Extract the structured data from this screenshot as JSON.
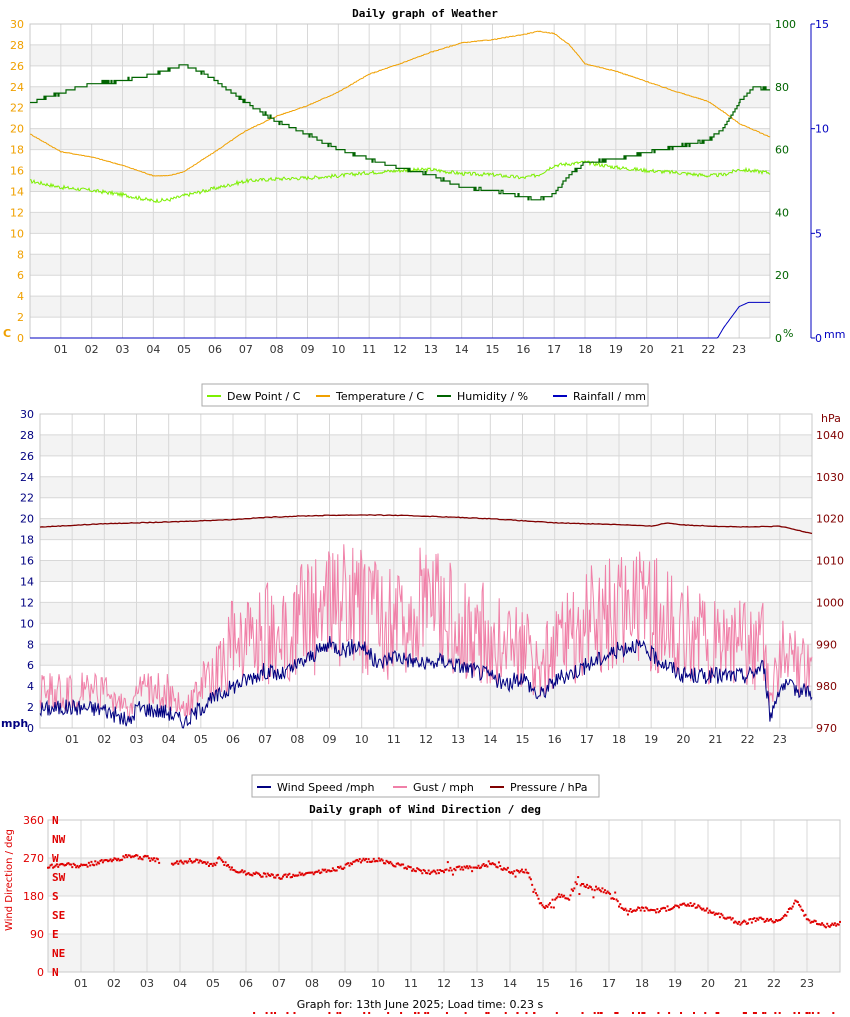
{
  "footer_text": "Graph for: 13th June 2025; Load time: 0.23 s",
  "chart_data": [
    {
      "type": "line",
      "title": "Daily graph of Weather",
      "x_ticks": [
        "01",
        "02",
        "03",
        "04",
        "05",
        "06",
        "07",
        "08",
        "09",
        "10",
        "11",
        "12",
        "13",
        "14",
        "15",
        "16",
        "17",
        "18",
        "19",
        "20",
        "21",
        "22",
        "23"
      ],
      "xlim": [
        0,
        24
      ],
      "grid": true,
      "legend_position": "bottom",
      "axes": {
        "temp": {
          "ylim": [
            0,
            30
          ],
          "ticks": [
            0,
            2,
            4,
            6,
            8,
            10,
            12,
            14,
            16,
            18,
            20,
            22,
            24,
            26,
            28,
            30
          ],
          "unit": "C",
          "color": "#f0a000"
        },
        "humidity": {
          "ylim": [
            0,
            100
          ],
          "ticks": [
            0,
            20,
            40,
            60,
            80,
            100
          ],
          "unit": "%",
          "color": "#006400"
        },
        "rain": {
          "ylim": [
            0,
            15
          ],
          "ticks": [
            0,
            5,
            10,
            15
          ],
          "unit": "mm",
          "color": "#0000c0"
        }
      },
      "series": [
        {
          "name": "Dew Point / C",
          "axis": "temp",
          "color": "#7cf000",
          "x": [
            0,
            1,
            2,
            3,
            4,
            4.5,
            5,
            6,
            7,
            8,
            9,
            10,
            11,
            12,
            13,
            14,
            15,
            16,
            16.5,
            17,
            18,
            19,
            20,
            21,
            22,
            22.5,
            23,
            24
          ],
          "y": [
            15,
            14.4,
            14.1,
            13.7,
            13.1,
            13.2,
            13.6,
            14.3,
            15,
            15.2,
            15.3,
            15.5,
            15.8,
            16,
            16.1,
            15.7,
            15.6,
            15.3,
            15.6,
            16.5,
            16.8,
            16.3,
            16,
            15.8,
            15.5,
            15.6,
            16.1,
            15.8
          ]
        },
        {
          "name": "Temperature / C",
          "axis": "temp",
          "color": "#f0a000",
          "x": [
            0,
            1,
            2,
            3,
            4,
            4.5,
            5,
            6,
            7,
            8,
            9,
            10,
            11,
            12,
            13,
            14,
            15,
            16,
            16.5,
            17,
            17.5,
            18,
            19,
            20,
            21,
            22,
            22.5,
            23,
            24
          ],
          "y": [
            19.5,
            17.8,
            17.3,
            16.5,
            15.5,
            15.5,
            15.9,
            17.8,
            19.8,
            21.2,
            22.2,
            23.5,
            25.2,
            26.2,
            27.3,
            28.2,
            28.5,
            29,
            29.3,
            29.1,
            28,
            26.2,
            25.5,
            24.5,
            23.5,
            22.6,
            21.6,
            20.5,
            19.2
          ]
        },
        {
          "name": "Humidity / %",
          "axis": "humidity",
          "color": "#006400",
          "x": [
            0,
            1,
            2,
            3,
            4,
            5,
            5.5,
            6,
            7,
            8,
            9,
            10,
            11,
            12,
            13,
            14,
            15,
            16,
            16.5,
            17,
            17.5,
            18,
            19,
            20,
            21,
            22,
            22.5,
            23,
            23.5,
            24
          ],
          "y": [
            75,
            78,
            81,
            82,
            84,
            87,
            85,
            82,
            75,
            69,
            65,
            60,
            57,
            54,
            52,
            48,
            47,
            45,
            44,
            46,
            52,
            56,
            57,
            59,
            61,
            63,
            67,
            75,
            80,
            79
          ]
        },
        {
          "name": "Rainfall / mm",
          "axis": "rain",
          "color": "#0000c0",
          "x": [
            0,
            22.3,
            22.5,
            23,
            23.3,
            24
          ],
          "y": [
            0,
            0,
            0.5,
            1.5,
            1.7,
            1.7
          ]
        }
      ]
    },
    {
      "type": "line",
      "title": "",
      "x_ticks": [
        "01",
        "02",
        "03",
        "04",
        "05",
        "06",
        "07",
        "08",
        "09",
        "10",
        "11",
        "12",
        "13",
        "14",
        "15",
        "16",
        "17",
        "18",
        "19",
        "20",
        "21",
        "22",
        "23"
      ],
      "xlim": [
        0,
        24
      ],
      "grid": true,
      "legend_position": "bottom",
      "axes": {
        "wind": {
          "ylim": [
            0,
            30
          ],
          "ticks": [
            0,
            2,
            4,
            6,
            8,
            10,
            12,
            14,
            16,
            18,
            20,
            22,
            24,
            26,
            28,
            30
          ],
          "unit": "mph",
          "color": "#000080"
        },
        "pressure": {
          "ylim": [
            970,
            1045
          ],
          "ticks": [
            970,
            980,
            990,
            1000,
            1010,
            1020,
            1030,
            1040
          ],
          "unit": "hPa",
          "color": "#800000"
        }
      },
      "series": [
        {
          "name": "Wind Speed /mph",
          "axis": "wind",
          "color": "#000080",
          "x": [
            0,
            1,
            2,
            2.8,
            3,
            4,
            4.5,
            5,
            6,
            7,
            7.5,
            8,
            9,
            9.5,
            10,
            10.5,
            11,
            12,
            12.5,
            13,
            14,
            14.5,
            15,
            15.5,
            16,
            17,
            18,
            18.5,
            19,
            20,
            21,
            22,
            22.5,
            22.7,
            23,
            24
          ],
          "y": [
            1.8,
            2,
            1.8,
            0.5,
            2,
            1.5,
            0.5,
            2,
            4,
            5.5,
            5,
            6,
            8,
            7.5,
            8,
            6,
            7,
            6,
            6.5,
            6,
            5,
            4,
            5,
            3,
            4.5,
            6,
            7.5,
            8,
            7,
            5,
            5,
            5,
            6,
            1,
            4,
            3.5
          ]
        },
        {
          "name": "Gust / mph",
          "axis": "wind",
          "color": "#f080a8",
          "x": [
            0,
            1,
            2,
            2.8,
            3,
            4,
            4.5,
            5,
            6,
            7,
            8,
            9,
            9.5,
            10,
            11,
            12,
            12.5,
            13,
            14,
            14.5,
            15,
            15.5,
            16,
            17,
            18,
            18.5,
            19,
            20,
            21,
            22,
            22.5,
            22.7,
            23,
            24
          ],
          "y": [
            3.5,
            3.5,
            3.5,
            1.5,
            3.5,
            3.5,
            1.5,
            4,
            8,
            9,
            10,
            11,
            12,
            11,
            10,
            12,
            11,
            10,
            9,
            8,
            8,
            5,
            8,
            10,
            12,
            11,
            11,
            9,
            8,
            8,
            8,
            2,
            7,
            5
          ]
        },
        {
          "name": "Pressure / hPa",
          "axis": "pressure",
          "color": "#800000",
          "x": [
            0,
            2,
            4,
            6,
            7,
            8,
            9,
            10,
            11,
            12,
            13,
            14,
            15,
            16,
            17,
            18,
            19,
            19.5,
            20,
            21,
            22,
            23,
            24
          ],
          "y": [
            1018,
            1018.8,
            1019.2,
            1019.8,
            1020.3,
            1020.6,
            1020.8,
            1020.9,
            1020.8,
            1020.6,
            1020.3,
            1020,
            1019.5,
            1019,
            1018.8,
            1018.6,
            1018.2,
            1019,
            1018.5,
            1018.2,
            1018,
            1018.2,
            1016.5
          ]
        }
      ]
    },
    {
      "type": "scatter",
      "title": "Daily graph of Wind Direction / deg",
      "ylabel": "Wind Direction / deg",
      "x_ticks": [
        "01",
        "02",
        "03",
        "04",
        "05",
        "06",
        "07",
        "08",
        "09",
        "10",
        "11",
        "12",
        "13",
        "14",
        "15",
        "16",
        "17",
        "18",
        "19",
        "20",
        "21",
        "22",
        "23"
      ],
      "xlim": [
        0,
        24
      ],
      "ylim": [
        0,
        360
      ],
      "y_ticks": [
        0,
        90,
        180,
        270,
        360
      ],
      "compass_labels": [
        "N",
        "NE",
        "E",
        "SE",
        "S",
        "SW",
        "W",
        "NW",
        "N"
      ],
      "color": "#e00000",
      "grid": true,
      "x": [
        0,
        0.5,
        1,
        1.5,
        2,
        2.5,
        3,
        3.5,
        3.8,
        4,
        4.5,
        5,
        5.2,
        5.5,
        6,
        6.5,
        7,
        7.5,
        8,
        8.5,
        9,
        9.5,
        10,
        10.5,
        11,
        11.5,
        12,
        12.5,
        13,
        13.5,
        14,
        14.5,
        15,
        15.3,
        15.5,
        15.8,
        16,
        16.5,
        17,
        17.3,
        17.5,
        18,
        18.5,
        19,
        19.5,
        20,
        20.5,
        21,
        21.5,
        22,
        22.3,
        22.7,
        23,
        23.5,
        24
      ],
      "y": [
        250,
        255,
        250,
        260,
        265,
        275,
        270,
        260,
        255,
        260,
        265,
        250,
        270,
        245,
        235,
        230,
        225,
        230,
        235,
        240,
        250,
        265,
        265,
        255,
        245,
        235,
        240,
        245,
        250,
        255,
        235,
        240,
        150,
        170,
        180,
        175,
        210,
        200,
        190,
        160,
        145,
        150,
        145,
        155,
        160,
        145,
        130,
        115,
        125,
        120,
        130,
        170,
        125,
        110,
        115
      ]
    }
  ]
}
